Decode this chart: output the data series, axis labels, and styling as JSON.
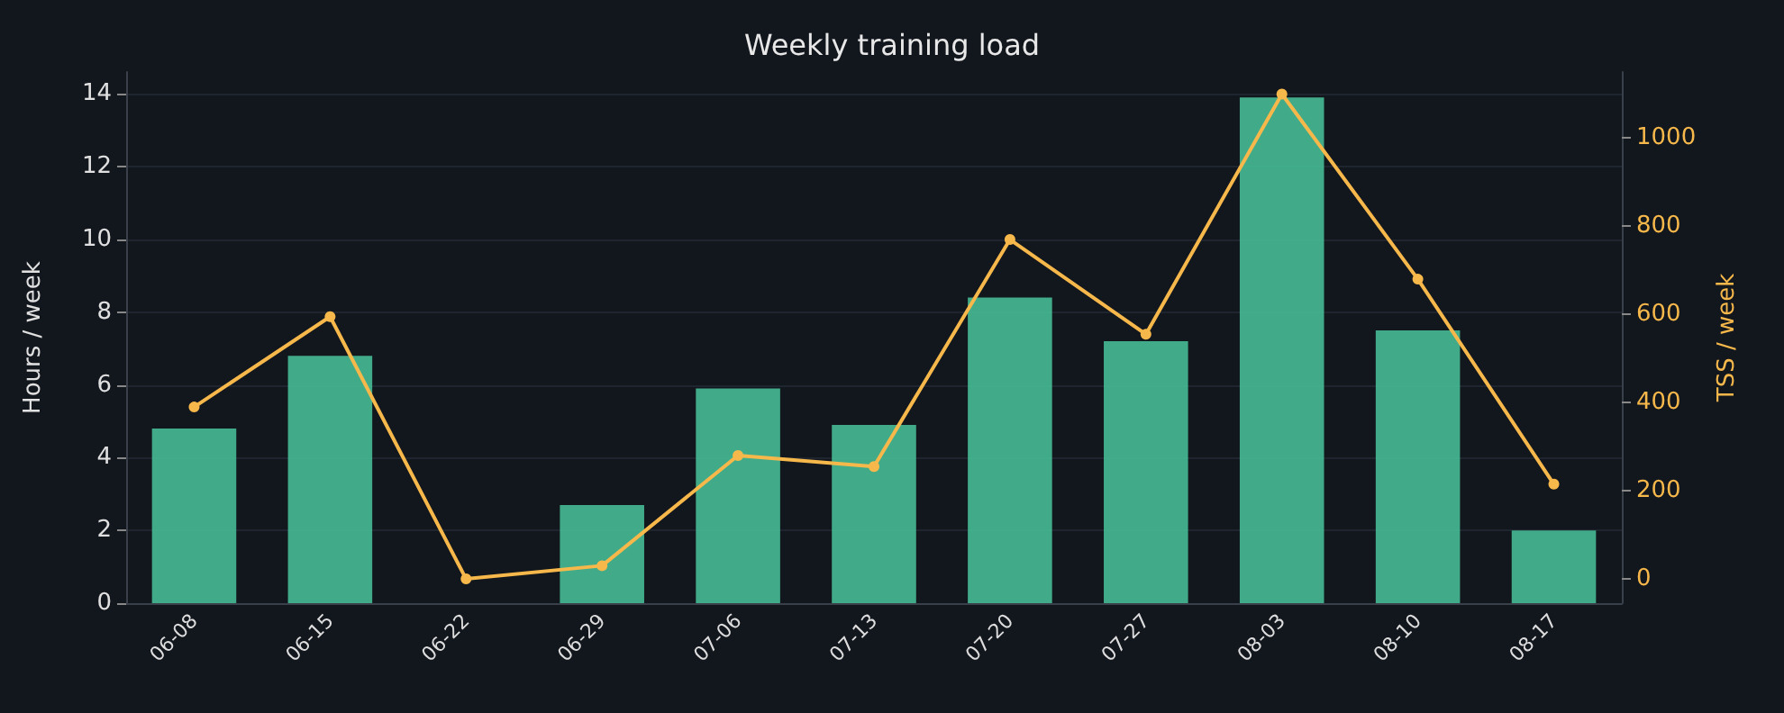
{
  "chart_data": {
    "type": "bar",
    "title": "Weekly training load",
    "ylabel": "Hours / week",
    "y2label": "TSS / week",
    "categories": [
      "06-08",
      "06-15",
      "06-22",
      "06-29",
      "07-06",
      "07-13",
      "07-20",
      "07-27",
      "08-03",
      "08-10",
      "08-17"
    ],
    "series": [
      {
        "color": "#45b892",
        "values": [
          4.8,
          6.8,
          0,
          2.7,
          5.9,
          4.9,
          8.4,
          7.2,
          13.9,
          7.5,
          2.0
        ]
      },
      {
        "type": "line",
        "axis": "y2",
        "color": "#f7b84b",
        "marker": "circle",
        "line_style": "solid",
        "values": [
          390,
          595,
          0,
          30,
          280,
          255,
          770,
          555,
          1100,
          680,
          215
        ]
      }
    ],
    "ylim": [
      0,
      14.6
    ],
    "yticks": [
      0,
      2,
      4,
      6,
      8,
      10,
      12,
      14
    ],
    "y2lim": [
      -55,
      1150
    ],
    "y2ticks": [
      0,
      200,
      400,
      600,
      800,
      1000
    ],
    "grid": "y"
  }
}
